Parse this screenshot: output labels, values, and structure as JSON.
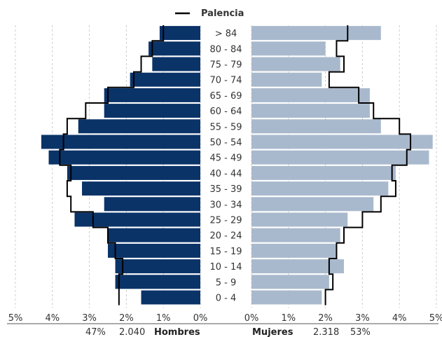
{
  "legend": {
    "label": "Palencia",
    "line_color": "#000000"
  },
  "colors": {
    "male": "#0a3368",
    "female": "#a9b9cd",
    "outline": "#000000",
    "grid": "#cccccc"
  },
  "footer": {
    "left_percent": "47%",
    "left_count": "2.040",
    "left_label": "Hombres",
    "right_label": "Mujeres",
    "right_count": "2.318",
    "right_percent": "53%"
  },
  "chart_data": {
    "type": "bar",
    "orientation": "horizontal",
    "layout": "population-pyramid",
    "categories": [
      "> 84",
      "80 - 84",
      "75 - 79",
      "70 - 74",
      "65 - 69",
      "60 - 64",
      "55 - 59",
      "50 - 54",
      "45 - 49",
      "40 - 44",
      "35 - 39",
      "30 - 34",
      "25 - 29",
      "20 - 24",
      "15 - 19",
      "10 - 14",
      "5 - 9",
      "0 - 4"
    ],
    "x_ticks_left": [
      "5%",
      "4%",
      "3%",
      "2%",
      "1%",
      "0%"
    ],
    "x_ticks_right": [
      "0%",
      "1%",
      "2%",
      "3%",
      "4%",
      "5%"
    ],
    "xlim": [
      0,
      5
    ],
    "grid": true,
    "legend_position": "top-center",
    "series": [
      {
        "side": "left",
        "values": [
          1.1,
          1.4,
          1.3,
          1.9,
          2.6,
          2.6,
          3.3,
          4.3,
          4.1,
          3.6,
          3.2,
          2.6,
          3.4,
          2.5,
          2.5,
          2.3,
          2.3,
          1.6
        ]
      },
      {
        "side": "right",
        "values": [
          3.5,
          2.0,
          2.4,
          1.9,
          3.2,
          3.2,
          3.5,
          4.9,
          4.8,
          3.9,
          3.7,
          3.3,
          2.6,
          2.4,
          2.3,
          2.5,
          2.1,
          1.9
        ]
      },
      {
        "name": "Palencia",
        "side": "left",
        "style": "outline",
        "values": [
          1.0,
          1.3,
          1.6,
          1.8,
          2.5,
          3.1,
          3.6,
          3.7,
          3.8,
          3.5,
          3.6,
          3.5,
          2.9,
          2.5,
          2.3,
          2.1,
          2.2,
          2.2
        ]
      },
      {
        "name": "Palencia",
        "side": "right",
        "style": "outline",
        "values": [
          2.6,
          2.3,
          2.5,
          2.1,
          2.9,
          3.3,
          4.0,
          4.3,
          4.2,
          3.8,
          3.9,
          3.5,
          3.0,
          2.5,
          2.3,
          2.1,
          2.2,
          2.0
        ]
      }
    ]
  }
}
